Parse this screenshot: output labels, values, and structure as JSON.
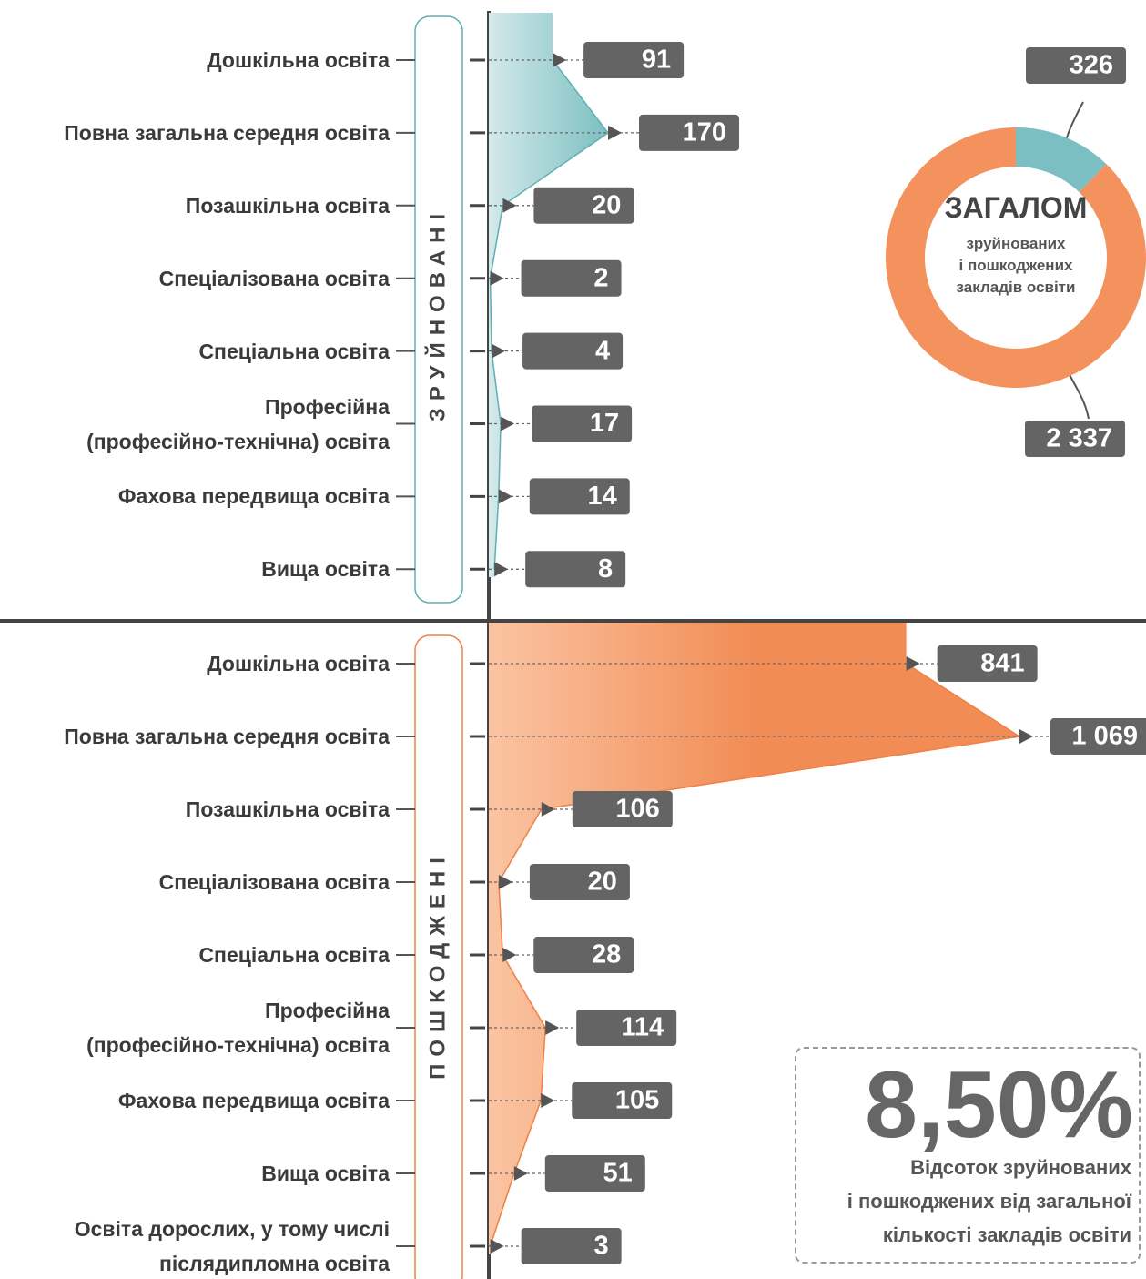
{
  "chart_data": [
    {
      "type": "area",
      "label": "ЗРУЙНОВАНІ",
      "color": "#7cbfc2",
      "light_color": "#d3e9ea",
      "stroke": "#5fb0b2",
      "categories": [
        "Дошкільна освіта",
        "Повна загальна середня освіта",
        "Позашкільна освіта",
        "Спеціалізована освіта",
        "Спеціальна освіта",
        "Професійна\n(професійно-технічна) освіта",
        "Фахова передвища освіта",
        "Вища освіта"
      ],
      "values": [
        91,
        170,
        20,
        2,
        4,
        17,
        14,
        8
      ]
    },
    {
      "type": "area",
      "label": "ПОШКОДЖЕНІ",
      "color": "#f28c55",
      "light_color": "#fac4a2",
      "stroke": "#ef8046",
      "categories": [
        "Дошкільна освіта",
        "Повна загальна середня освіта",
        "Позашкільна освіта",
        "Спеціалізована освіта",
        "Спеціальна освіта",
        "Професійна\n(професійно-технічна) освіта",
        "Фахова передвища освіта",
        "Вища освіта",
        "Освіта дорослих, у тому числі\nпіслядипломна освіта"
      ],
      "values": [
        841,
        1069,
        106,
        20,
        28,
        114,
        105,
        51,
        3
      ],
      "value_labels": [
        "841",
        "1 069",
        "106",
        "20",
        "28",
        "114",
        "105",
        "51",
        "3"
      ]
    },
    {
      "type": "donut",
      "title": "ЗАГАЛОМ",
      "subtitle": "зруйнованих\nі пошкоджених\nзакладів освіти",
      "values": [
        326,
        2337
      ],
      "value_labels": [
        "326",
        "2 337"
      ],
      "colors": [
        "#7cbfc2",
        "#f4925d"
      ]
    }
  ],
  "callout": {
    "headline": "8,50%",
    "text": "Відсоток зруйнованих\nі пошкоджених від загальної\nкількості закладів освіти"
  }
}
